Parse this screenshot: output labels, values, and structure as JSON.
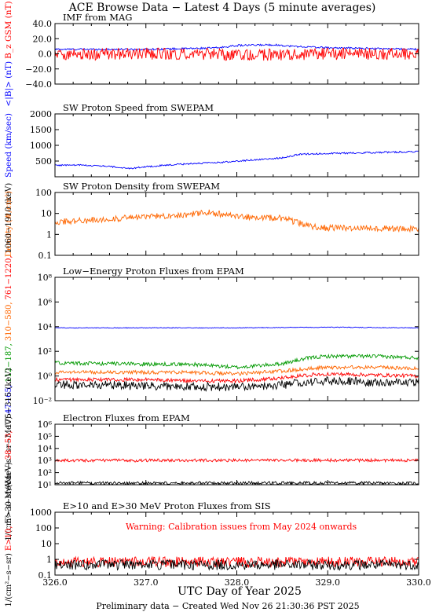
{
  "title": "ACE Browse Data − Latest 4 Days (5 minute averages)",
  "footer": "Preliminary data − Created Wed Nov 26 21:30:36 PST 2025",
  "xlabel": "UTC Day of Year 2025",
  "x_ticks": [
    "326.0",
    "327.0",
    "328.0",
    "329.0",
    "330.0"
  ],
  "colors": {
    "blue": "#0000ff",
    "red": "#ff0000",
    "orange": "#ff6600",
    "green": "#009900",
    "black": "#000000"
  },
  "chart_data": [
    {
      "type": "line",
      "title": "IMF from MAG",
      "ylabel_parts": [
        {
          "text": "<|B|> (nT)",
          "color": "#0000ff"
        },
        {
          "text": "B_z GSM (nT)",
          "color": "#ff0000"
        }
      ],
      "ylim": [
        -40,
        40
      ],
      "yscale": "linear",
      "y_ticks": [
        "40.0",
        "20.0",
        "0.0",
        "−20.0",
        "−40.0"
      ],
      "series": [
        {
          "name": "<|B|>",
          "color": "#0000ff",
          "x": [
            326.0,
            326.5,
            327.0,
            327.5,
            327.8,
            328.0,
            328.4,
            328.6,
            329.0,
            329.5,
            330.0
          ],
          "values": [
            6,
            6,
            6,
            7,
            8,
            11,
            12,
            10,
            8,
            7,
            6
          ]
        },
        {
          "name": "Bz GSM",
          "color": "#ff0000",
          "x": [
            326.0,
            326.5,
            327.0,
            327.5,
            328.0,
            328.5,
            329.0,
            329.5,
            330.0
          ],
          "values": [
            0,
            -1,
            0,
            0,
            -2,
            -1,
            0,
            0,
            0
          ]
        }
      ]
    },
    {
      "type": "line",
      "title": "SW Proton Speed from SWEPAM",
      "ylabel_parts": [
        {
          "text": "Speed (km/sec)",
          "color": "#0000ff"
        }
      ],
      "ylim": [
        0,
        2000
      ],
      "yscale": "linear",
      "y_ticks": [
        "2000",
        "1500",
        "1000",
        "500"
      ],
      "series": [
        {
          "name": "Speed",
          "color": "#0000ff",
          "x": [
            326.0,
            326.3,
            326.6,
            326.8,
            327.0,
            327.3,
            327.5,
            327.8,
            328.0,
            328.3,
            328.5,
            328.7,
            329.0,
            329.5,
            330.0
          ],
          "values": [
            370,
            370,
            330,
            260,
            320,
            380,
            420,
            450,
            500,
            560,
            600,
            720,
            740,
            770,
            800
          ]
        }
      ]
    },
    {
      "type": "line",
      "title": "SW Proton Density from SWEPAM",
      "ylabel_parts": [
        {
          "text": "Density (#/cm³)",
          "color": "#ff6600"
        }
      ],
      "ylim": [
        0.1,
        100
      ],
      "yscale": "log",
      "y_ticks": [
        "100",
        "10",
        "1",
        "0.1"
      ],
      "series": [
        {
          "name": "Density",
          "color": "#ff6600",
          "x": [
            326.0,
            326.5,
            327.0,
            327.5,
            327.7,
            328.0,
            328.5,
            328.8,
            329.0,
            329.5,
            330.0
          ],
          "values": [
            4,
            5,
            7,
            9,
            11,
            7,
            6,
            2.5,
            2,
            2,
            1.8
          ]
        }
      ]
    },
    {
      "type": "line",
      "title": "Low−Energy Proton Fluxes from EPAM",
      "ylabel_parts": [
        {
          "text": "1/(cm²−s−sr−MeV)",
          "color": "#000000"
        },
        {
          "text": "47−65,",
          "color": "#0000ff"
        },
        {
          "text": "112−187,",
          "color": "#009900"
        },
        {
          "text": "310−580,",
          "color": "#ff6600"
        },
        {
          "text": "761−1220,",
          "color": "#ff0000"
        },
        {
          "text": "1060−1910 (keV)",
          "color": "#000000"
        }
      ],
      "ylim": [
        0.01,
        100000000
      ],
      "yscale": "log",
      "y_ticks": [
        "10⁸",
        "10⁶",
        "10⁴",
        "10²",
        "10⁰",
        "10⁻²"
      ],
      "series": [
        {
          "name": "47-65 keV",
          "color": "#0000ff",
          "x": [
            326.0,
            327.0,
            328.0,
            329.0,
            330.0
          ],
          "values": [
            8000,
            8000,
            8000,
            9000,
            8000
          ]
        },
        {
          "name": "112-187 keV",
          "color": "#009900",
          "x": [
            326.0,
            326.5,
            327.0,
            327.5,
            328.0,
            328.5,
            328.8,
            329.0,
            329.5,
            330.0
          ],
          "values": [
            12,
            10,
            9,
            9,
            5,
            10,
            30,
            40,
            40,
            30
          ]
        },
        {
          "name": "310-580 keV",
          "color": "#ff6600",
          "x": [
            326.0,
            326.5,
            327.0,
            327.5,
            328.0,
            328.5,
            328.8,
            329.0,
            329.5,
            330.0
          ],
          "values": [
            2,
            2,
            2,
            2,
            1.5,
            2.5,
            4,
            5,
            5,
            4
          ]
        },
        {
          "name": "761-1220 keV",
          "color": "#ff0000",
          "x": [
            326.0,
            326.5,
            327.0,
            327.5,
            328.0,
            328.5,
            328.8,
            329.0,
            329.5,
            330.0
          ],
          "values": [
            0.5,
            0.5,
            0.5,
            0.4,
            0.4,
            0.7,
            1.2,
            1.5,
            1.2,
            1.0
          ]
        },
        {
          "name": "1060-1910 keV",
          "color": "#000000",
          "x": [
            326.0,
            326.5,
            327.0,
            327.5,
            328.0,
            328.5,
            328.8,
            329.0,
            329.5,
            330.0
          ],
          "values": [
            0.2,
            0.2,
            0.15,
            0.15,
            0.12,
            0.2,
            0.3,
            0.4,
            0.3,
            0.3
          ]
        }
      ]
    },
    {
      "type": "line",
      "title": "Electron Fluxes from EPAM",
      "ylabel_parts": [
        {
          "text": "1/(cm²−s−sr−MeV)",
          "color": "#000000"
        },
        {
          "text": "38−53,",
          "color": "#ff0000"
        },
        {
          "text": "175−315 (keV)",
          "color": "#000000"
        }
      ],
      "ylim": [
        10,
        10000000
      ],
      "yscale": "log",
      "y_ticks": [
        "10⁶",
        "10⁵",
        "10⁴",
        "10³",
        "10²",
        "10¹"
      ],
      "series": [
        {
          "name": "38-53 keV",
          "color": "#ff0000",
          "x": [
            326.0,
            327.0,
            328.0,
            329.0,
            330.0
          ],
          "values": [
            2600,
            2600,
            2600,
            2700,
            2600
          ]
        },
        {
          "name": "175-315 keV",
          "color": "#000000",
          "x": [
            326.0,
            327.0,
            328.0,
            329.0,
            330.0
          ],
          "values": [
            15,
            14,
            15,
            15,
            14
          ]
        }
      ]
    },
    {
      "type": "line",
      "title": "E>10 and E>30 MeV Proton Fluxes from SIS",
      "annotation": "Warning: Calibration issues from May 2024 onwards",
      "ylabel_parts": [
        {
          "text": "1/(cm²−s−sr)",
          "color": "#000000"
        },
        {
          "text": "E>10,",
          "color": "#ff0000"
        },
        {
          "text": "E>30 MeV",
          "color": "#000000"
        }
      ],
      "ylim": [
        0.1,
        2000
      ],
      "yscale": "log",
      "y_ticks": [
        "1000",
        "100",
        "10",
        "1",
        "0.1"
      ],
      "series": [
        {
          "name": "E>10 MeV",
          "color": "#ff0000",
          "x": [
            326.0,
            327.0,
            328.0,
            329.0,
            330.0
          ],
          "values": [
            0.8,
            0.8,
            0.8,
            0.8,
            0.8
          ]
        },
        {
          "name": "E>30 MeV",
          "color": "#000000",
          "x": [
            326.0,
            327.0,
            328.0,
            329.0,
            330.0
          ],
          "values": [
            0.5,
            0.5,
            0.5,
            0.5,
            0.5
          ]
        }
      ]
    }
  ]
}
